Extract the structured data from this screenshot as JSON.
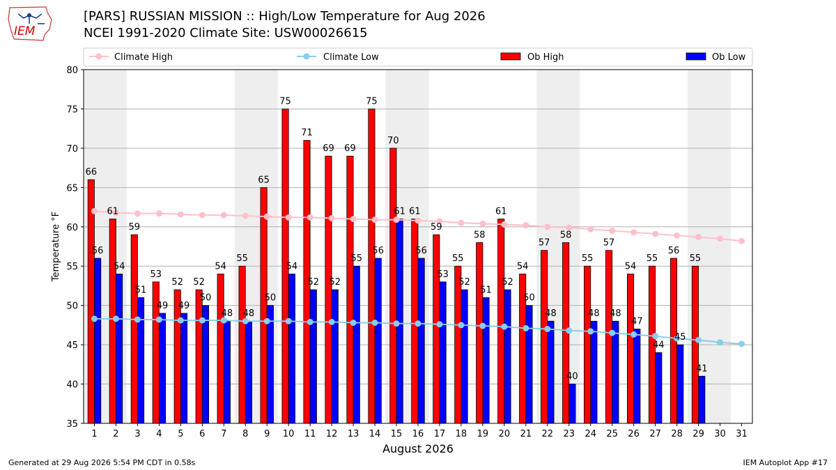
{
  "header": {
    "title_line1": "[PARS] RUSSIAN MISSION :: High/Low Temperature for Aug 2026",
    "title_line2": "NCEI 1991-2020 Climate Site: USW00026615",
    "logo_text": "IEM"
  },
  "footer": {
    "generated": "Generated at 29 Aug 2026 5:54 PM CDT in 0.58s",
    "app": "IEM Autoplot App #17"
  },
  "colors": {
    "ob_high": "#ff0000",
    "ob_low": "#0000ff",
    "climate_high": "#ffc0cb",
    "climate_low": "#87ceeb",
    "weekend_band": "#eeeeee",
    "grid": "#b0b0b0"
  },
  "chart_data": {
    "type": "bar",
    "xlabel": "August 2026",
    "ylabel": "Temperature °F",
    "ylim": [
      35,
      80
    ],
    "yticks": [
      35,
      40,
      45,
      50,
      55,
      60,
      65,
      70,
      75,
      80
    ],
    "grid": "horizontal",
    "legend_placement": "top",
    "categories": [
      "1",
      "2",
      "3",
      "4",
      "5",
      "6",
      "7",
      "8",
      "9",
      "10",
      "11",
      "12",
      "13",
      "14",
      "15",
      "16",
      "17",
      "18",
      "19",
      "20",
      "21",
      "22",
      "23",
      "24",
      "25",
      "26",
      "27",
      "28",
      "29",
      "30",
      "31"
    ],
    "shaded_days": [
      1,
      2,
      8,
      9,
      15,
      16,
      22,
      23,
      29,
      30
    ],
    "series": [
      {
        "name": "Climate High",
        "kind": "line",
        "values": [
          62.0,
          61.8,
          61.7,
          61.7,
          61.6,
          61.5,
          61.5,
          61.4,
          61.3,
          61.2,
          61.2,
          61.1,
          61.0,
          60.9,
          60.9,
          60.8,
          60.7,
          60.5,
          60.4,
          60.3,
          60.2,
          60.0,
          59.9,
          59.7,
          59.5,
          59.3,
          59.1,
          58.9,
          58.7,
          58.5,
          58.2
        ]
      },
      {
        "name": "Climate Low",
        "kind": "line",
        "values": [
          48.3,
          48.3,
          48.2,
          48.2,
          48.1,
          48.1,
          48.1,
          48.0,
          48.0,
          48.0,
          47.9,
          47.9,
          47.8,
          47.8,
          47.7,
          47.7,
          47.6,
          47.5,
          47.4,
          47.3,
          47.1,
          47.0,
          46.8,
          46.7,
          46.5,
          46.3,
          46.1,
          45.8,
          45.6,
          45.3,
          45.1
        ]
      },
      {
        "name": "Ob High",
        "kind": "bar",
        "values": [
          66,
          61,
          59,
          53,
          52,
          52,
          54,
          55,
          65,
          75,
          71,
          69,
          69,
          75,
          70,
          61,
          59,
          55,
          58,
          61,
          54,
          57,
          58,
          55,
          57,
          54,
          55,
          56,
          55,
          null,
          null
        ]
      },
      {
        "name": "Ob Low",
        "kind": "bar",
        "values": [
          56,
          54,
          51,
          49,
          49,
          50,
          48,
          48,
          50,
          54,
          52,
          52,
          55,
          56,
          61,
          56,
          53,
          52,
          51,
          52,
          50,
          48,
          40,
          48,
          48,
          47,
          44,
          45,
          41,
          null,
          null
        ]
      }
    ]
  }
}
